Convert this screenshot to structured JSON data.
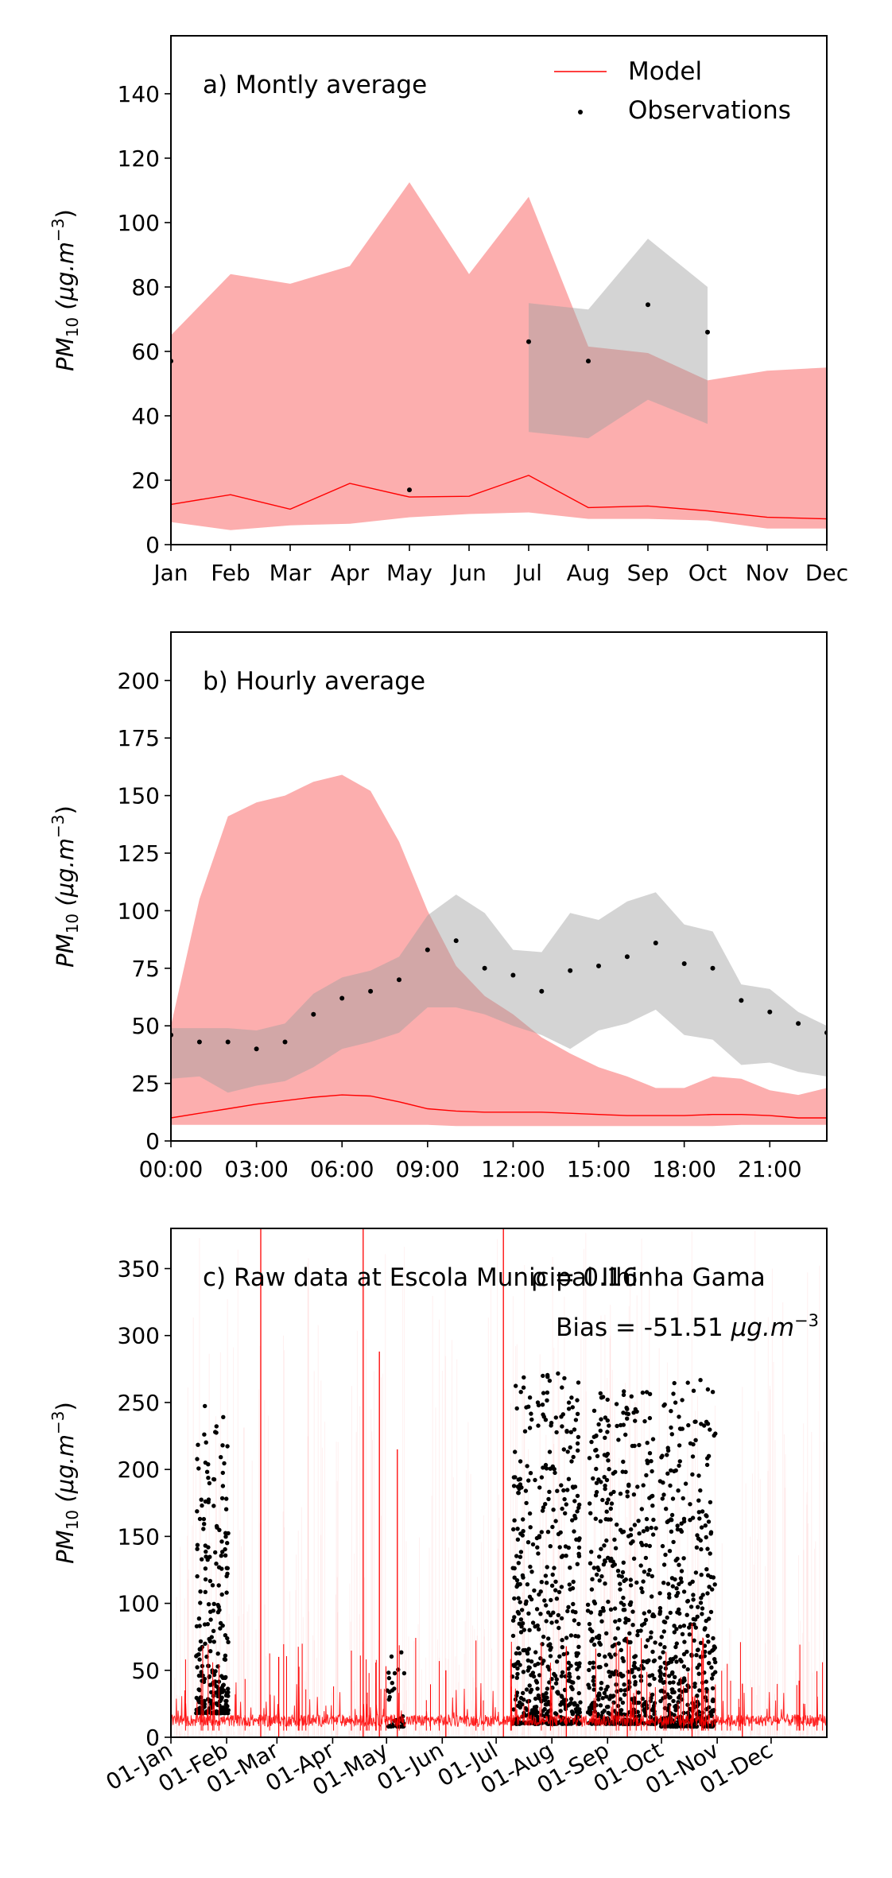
{
  "chart_data": [
    {
      "type": "line",
      "panel": "a",
      "annotation": "a) Montly average",
      "ylabel_main": "PM",
      "ylabel_sub": "10",
      "ylabel_unit": "(μg.m",
      "ylabel_exp": "−3",
      "ylabel_close": ")",
      "xlim": [
        0,
        11
      ],
      "ylim": [
        0,
        158
      ],
      "yticks": [
        0,
        20,
        40,
        60,
        80,
        100,
        120,
        140
      ],
      "xticks": [
        0,
        1,
        2,
        3,
        4,
        5,
        6,
        7,
        8,
        9,
        10,
        11
      ],
      "xticklabels": [
        "Jan",
        "Feb",
        "Mar",
        "Apr",
        "May",
        "Jun",
        "Jul",
        "Aug",
        "Sep",
        "Oct",
        "Nov",
        "Dec"
      ],
      "legend": {
        "position": "top-right",
        "model_label": "Model",
        "obs_label": "Observations"
      },
      "colors": {
        "model": "#ff0000",
        "model_band": "#fcaaaa",
        "obs": "#000000",
        "obs_band": "#c8c8c8"
      },
      "model": {
        "x": [
          0,
          1,
          2,
          3,
          4,
          5,
          6,
          7,
          8,
          9,
          10,
          11
        ],
        "mean": [
          12.5,
          15.5,
          11,
          19,
          14.8,
          15,
          21.5,
          11.5,
          12,
          10.5,
          8.5,
          8
        ],
        "low": [
          7,
          4.5,
          6,
          6.5,
          8.5,
          9.5,
          10,
          8,
          8,
          7.5,
          5,
          5
        ],
        "high": [
          65,
          84,
          81,
          86.5,
          112.5,
          84,
          108,
          61.5,
          59.5,
          51,
          54,
          55
        ]
      },
      "observations": {
        "x": [
          0,
          4,
          6,
          7,
          8,
          9
        ],
        "y": [
          57,
          17,
          63,
          57,
          74.5,
          66
        ]
      },
      "obs_band": {
        "x": [
          6,
          7,
          8,
          9
        ],
        "low": [
          35,
          33,
          45,
          37.5
        ],
        "high": [
          75,
          73,
          95,
          80
        ]
      }
    },
    {
      "type": "line",
      "panel": "b",
      "annotation": "b) Hourly average",
      "ylabel_main": "PM",
      "ylabel_sub": "10",
      "ylabel_unit": "(μg.m",
      "ylabel_exp": "−3",
      "ylabel_close": ")",
      "xlim": [
        0,
        23
      ],
      "ylim": [
        0,
        221
      ],
      "yticks": [
        0,
        25,
        50,
        75,
        100,
        125,
        150,
        175,
        200
      ],
      "xticks": [
        0,
        3,
        6,
        9,
        12,
        15,
        18,
        21
      ],
      "xticklabels": [
        "00:00",
        "03:00",
        "06:00",
        "09:00",
        "12:00",
        "15:00",
        "18:00",
        "21:00"
      ],
      "model": {
        "x": [
          0,
          1,
          2,
          3,
          4,
          5,
          6,
          7,
          8,
          9,
          10,
          11,
          12,
          13,
          14,
          15,
          16,
          17,
          18,
          19,
          20,
          21,
          22,
          23
        ],
        "mean": [
          10,
          12,
          14,
          16,
          17.5,
          19,
          20,
          19.5,
          17,
          14,
          13,
          12.5,
          12.5,
          12.5,
          12,
          11.5,
          11,
          11,
          11,
          11.5,
          11.5,
          11,
          10,
          10
        ],
        "low": [
          7,
          7,
          7,
          7,
          7,
          7,
          7,
          7,
          7,
          7,
          6.5,
          6.5,
          6.5,
          6.5,
          6.5,
          6.5,
          6.5,
          6.5,
          6.5,
          6.5,
          7,
          7,
          7,
          7
        ],
        "high": [
          50,
          105,
          141,
          147,
          150,
          156,
          159,
          152,
          130,
          100,
          76,
          63,
          55,
          45,
          38,
          32,
          28,
          23,
          23,
          28,
          27,
          22,
          20,
          23
        ]
      },
      "observations": {
        "x": [
          0,
          1,
          2,
          3,
          4,
          5,
          6,
          7,
          8,
          9,
          10,
          11,
          12,
          13,
          14,
          15,
          16,
          17,
          18,
          19,
          20,
          21,
          22,
          23
        ],
        "y": [
          46,
          43,
          43,
          40,
          43,
          55,
          62,
          65,
          70,
          83,
          87,
          75,
          72,
          65,
          74,
          76,
          80,
          86,
          77,
          75,
          61,
          56,
          51,
          47
        ]
      },
      "obs_band": {
        "x": [
          0,
          1,
          2,
          3,
          4,
          5,
          6,
          7,
          8,
          9,
          10,
          11,
          12,
          13,
          14,
          15,
          16,
          17,
          18,
          19,
          20,
          21,
          22,
          23
        ],
        "low": [
          27,
          28,
          21,
          24,
          26,
          32,
          40,
          43,
          47,
          58,
          58,
          55,
          50,
          46,
          40,
          48,
          51,
          57,
          46,
          44,
          33,
          34,
          30,
          28
        ],
        "high": [
          49,
          49,
          49,
          48,
          51,
          64,
          71,
          74,
          80,
          98,
          107,
          99,
          83,
          82,
          99,
          96,
          104,
          108,
          94,
          91,
          68,
          66,
          56,
          50
        ]
      }
    },
    {
      "type": "scatter",
      "panel": "c",
      "annotation": "c) Raw data at Escola Municipal Ilhinha Gama",
      "annotation_rho": "ρ = 0.16",
      "annotation_bias_prefix": "Bias = -51.51 ",
      "annotation_bias_unit": "μg.m",
      "annotation_bias_exp": "−3",
      "ylabel_main": "PM",
      "ylabel_sub": "10",
      "ylabel_unit": "(μg.m",
      "ylabel_exp": "−3",
      "ylabel_close": ")",
      "xlim": [
        0,
        365
      ],
      "ylim": [
        0,
        380
      ],
      "yticks": [
        0,
        50,
        100,
        150,
        200,
        250,
        300,
        350
      ],
      "xticks": [
        0,
        31,
        59,
        90,
        120,
        151,
        181,
        212,
        243,
        273,
        304,
        334
      ],
      "xticklabels": [
        "01-Jan",
        "01-Feb",
        "01-Mar",
        "01-Apr",
        "01-May",
        "01-Jun",
        "01-Jul",
        "01-Aug",
        "01-Sep",
        "01-Oct",
        "01-Nov",
        "01-Dec"
      ],
      "model_spikes": {
        "x": [
          50,
          60,
          107,
          116,
          126,
          153,
          185,
          220,
          254,
          290,
          318
        ],
        "y": [
          380,
          60,
          380,
          288,
          215,
          50,
          380,
          68,
          75,
          85,
          40
        ]
      },
      "obs_clusters": [
        {
          "x_range": [
            14,
            32
          ],
          "y_range": [
            18,
            250
          ],
          "n": 260
        },
        {
          "x_range": [
            120,
            130
          ],
          "y_range": [
            8,
            65
          ],
          "n": 35
        },
        {
          "x_range": [
            190,
            228
          ],
          "y_range": [
            10,
            272
          ],
          "n": 520
        },
        {
          "x_range": [
            232,
            270
          ],
          "y_range": [
            10,
            260
          ],
          "n": 520
        },
        {
          "x_range": [
            272,
            303
          ],
          "y_range": [
            8,
            267
          ],
          "n": 460
        }
      ]
    }
  ]
}
